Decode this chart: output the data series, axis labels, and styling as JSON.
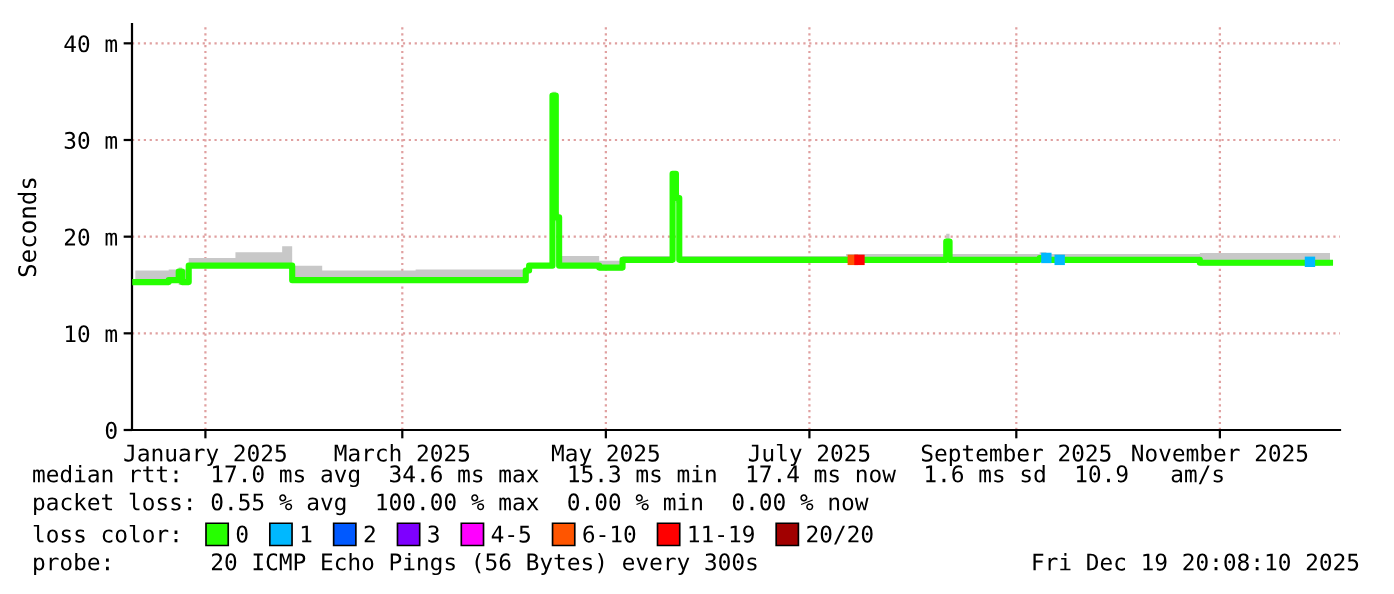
{
  "chart_data": {
    "type": "step",
    "ylabel": "Seconds",
    "legend_title": "loss color:",
    "legend": "bottom",
    "grid": true,
    "marker": "none",
    "line_style": "solid",
    "xlim": [
      "2024-12-25",
      "2025-12-22"
    ],
    "xticks": [
      {
        "value": "2025-01-16",
        "label": "January 2025"
      },
      {
        "value": "2025-03-16",
        "label": "March 2025"
      },
      {
        "value": "2025-05-16",
        "label": "May 2025"
      },
      {
        "value": "2025-07-16",
        "label": "July 2025"
      },
      {
        "value": "2025-09-16",
        "label": "September 2025"
      },
      {
        "value": "2025-11-16",
        "label": "November 2025"
      }
    ],
    "ylim": [
      0,
      42
    ],
    "yticks": [
      0,
      {
        "value": 10,
        "label": "10 m"
      },
      {
        "value": 20,
        "label": "20 m"
      },
      {
        "value": 30,
        "label": "30 m"
      },
      {
        "value": 40,
        "label": "40 m"
      }
    ],
    "series": [
      {
        "name": "0",
        "color": "#26ff00",
        "x": [
          "2024-12-26",
          "2025-01-05",
          "2025-01-08",
          "2025-01-09",
          "2025-01-11",
          "2025-01-25",
          "2025-02-08",
          "2025-02-11",
          "2025-02-20",
          "2025-03-20",
          "2025-04-22",
          "2025-04-23",
          "2025-04-30",
          "2025-05-01",
          "2025-05-02",
          "2025-05-14",
          "2025-05-21",
          "2025-06-05",
          "2025-06-06",
          "2025-06-07",
          "2025-07-27",
          "2025-08-26",
          "2025-08-27",
          "2025-09-23",
          "2025-09-25",
          "2025-11-10",
          "2025-12-19"
        ],
        "values": [
          15.3,
          15.5,
          16.4,
          15.3,
          17.0,
          17.0,
          17.0,
          15.5,
          15.5,
          15.5,
          16.5,
          17.0,
          34.6,
          22.0,
          17.0,
          16.8,
          17.6,
          26.5,
          24.0,
          17.6,
          17.6,
          19.5,
          17.6,
          17.8,
          17.6,
          17.3,
          17.3
        ],
        "lower": [
          15.0,
          15.2,
          15.0,
          15.0,
          16.8,
          16.8,
          16.8,
          15.2,
          15.2,
          15.2,
          16.2,
          16.8,
          34.0,
          21.5,
          16.8,
          16.5,
          17.4,
          26.0,
          23.5,
          17.4,
          17.4,
          19.0,
          17.4,
          17.5,
          17.4,
          17.0,
          17.0
        ],
        "upper": [
          16.5,
          16.6,
          16.8,
          16.6,
          17.8,
          18.4,
          19.0,
          17.0,
          16.5,
          16.6,
          16.8,
          17.2,
          35.0,
          22.5,
          18.0,
          17.5,
          18.0,
          26.8,
          24.5,
          18.0,
          18.2,
          20.3,
          18.2,
          18.4,
          18.2,
          18.3,
          18.3
        ]
      },
      {
        "name": "1",
        "color": "#00b8ff",
        "type": "scatter",
        "marker": "square",
        "x": [
          "2025-09-25",
          "2025-09-29",
          "2025-12-13"
        ],
        "values": [
          17.8,
          17.6,
          17.4
        ]
      },
      {
        "name": "2",
        "color": "#0059ff",
        "type": "scatter",
        "marker": "square"
      },
      {
        "name": "3",
        "color": "#7e00ff",
        "type": "scatter",
        "marker": "square"
      },
      {
        "name": "4-5",
        "color": "#ff00ff",
        "type": "scatter",
        "marker": "square"
      },
      {
        "name": "6-10",
        "color": "#ff5500",
        "type": "scatter",
        "marker": "square",
        "x": [
          "2025-07-29"
        ],
        "values": [
          17.6
        ]
      },
      {
        "name": "11-19",
        "color": "#ff0000",
        "type": "scatter",
        "marker": "square",
        "x": [
          "2025-07-31"
        ],
        "values": [
          17.6
        ]
      },
      {
        "name": "20/20",
        "color": "#a10000",
        "type": "scatter",
        "marker": "square"
      }
    ],
    "annotations": [
      "median rtt:  17.0 ms avg  34.6 ms max  15.3 ms min  17.4 ms now  1.6 ms sd  10.9   am/s",
      "packet loss: 0.55 % avg  100.00 % max  0.00 % min  0.00 % now",
      "probe:       20 ICMP Echo Pings (56 Bytes) every 300s",
      "Fri Dec 19 20:08:10 2025"
    ]
  }
}
